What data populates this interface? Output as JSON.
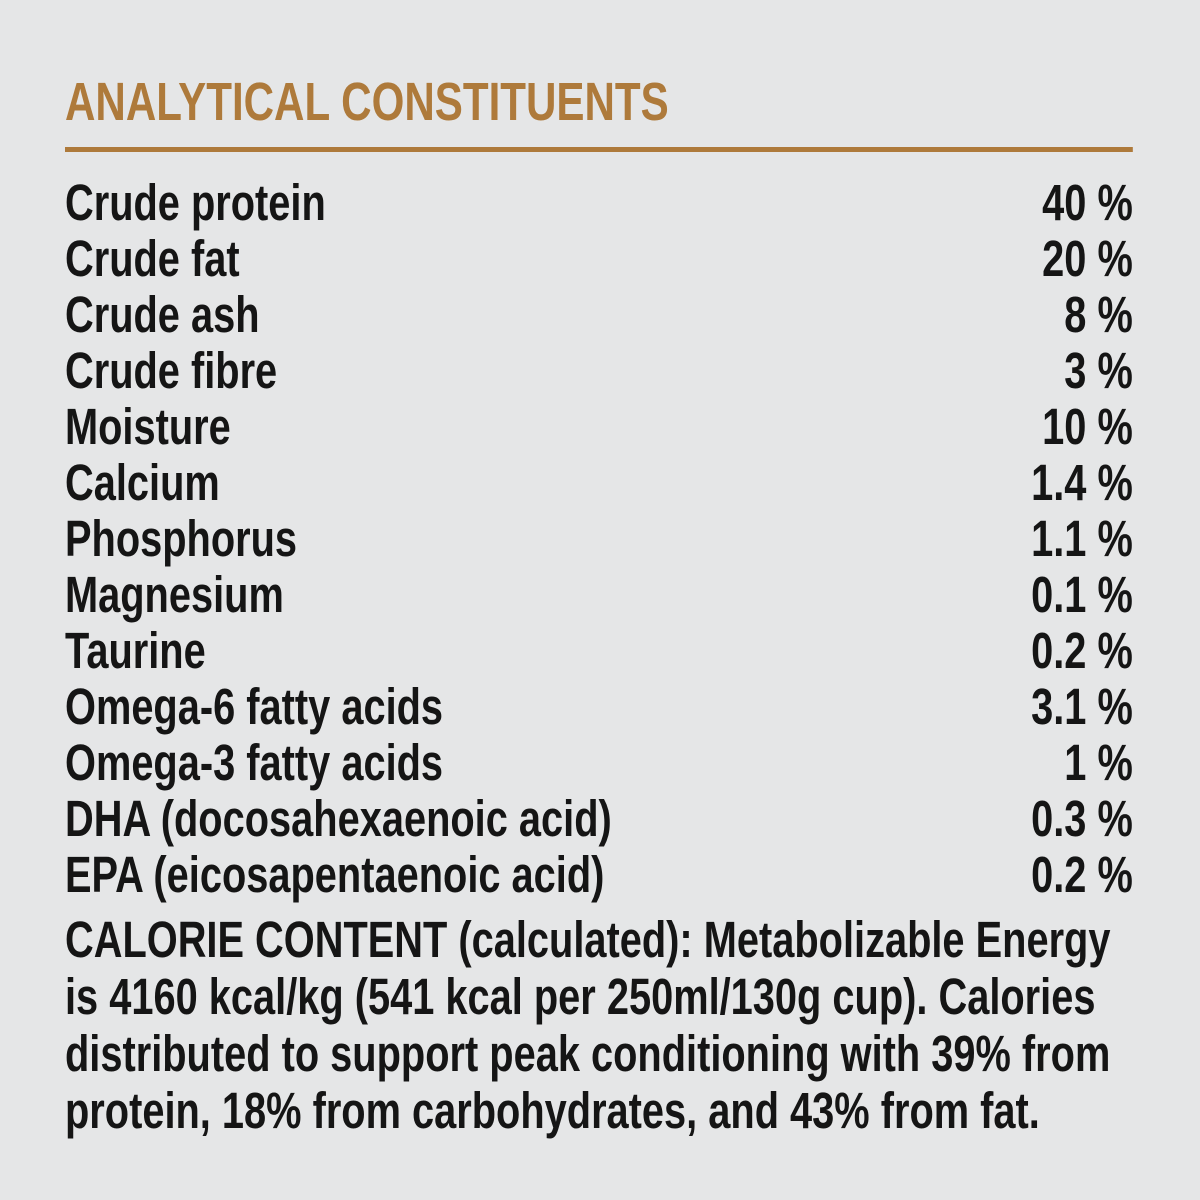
{
  "page": {
    "background_color": "#e5e6e7",
    "accent_color": "#ae7a3b",
    "text_color": "#151515"
  },
  "label_panel": {
    "title": "ANALYTICAL CONSTITUENTS",
    "table": {
      "rows": [
        {
          "label": "Crude protein",
          "value": "40 %"
        },
        {
          "label": "Crude fat",
          "value": "20 %"
        },
        {
          "label": "Crude ash",
          "value": "8 %"
        },
        {
          "label": "Crude fibre",
          "value": "3 %"
        },
        {
          "label": "Moisture",
          "value": "10 %"
        },
        {
          "label": "Calcium",
          "value": "1.4 %"
        },
        {
          "label": "Phosphorus",
          "value": "1.1 %"
        },
        {
          "label": "Magnesium",
          "value": "0.1 %"
        },
        {
          "label": "Taurine",
          "value": "0.2 %"
        },
        {
          "label": "Omega-6 fatty acids",
          "value": "3.1 %"
        },
        {
          "label": "Omega-3 fatty acids",
          "value": "1 %"
        },
        {
          "label": "DHA (docosahexaenoic acid)",
          "value": "0.3 %"
        },
        {
          "label": "EPA (eicosapentaenoic acid)",
          "value": "0.2 %"
        }
      ]
    },
    "calorie_note": "CALORIE CONTENT (calculated): Metabolizable Energy is 4160 kcal/kg (541 kcal per 250ml/130g cup). Calories distributed to support peak conditioning with 39% from protein, 18% from carbohydrates, and 43% from fat."
  }
}
